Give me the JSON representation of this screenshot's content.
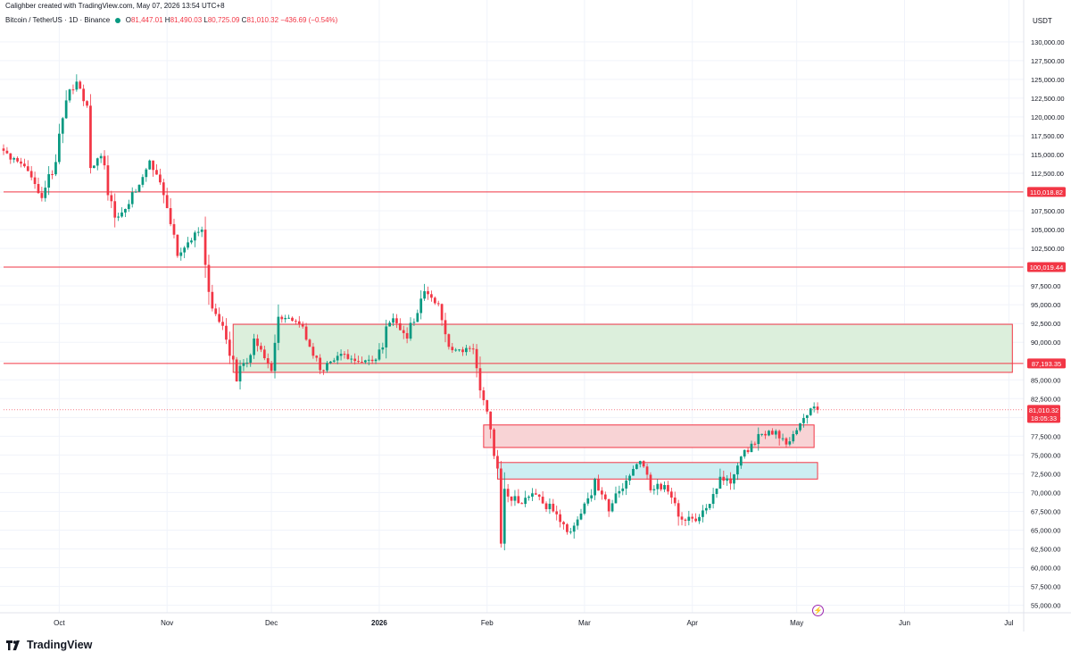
{
  "header": {
    "creator_line": "Calighber created with TradingView.com, May 07, 2026 13:54 UTC+8",
    "symbol": "Bitcoin / TetherUS · 1D · Binance",
    "open_label": "O",
    "open": "81,447.01",
    "high_label": "H",
    "high": "81,490.03",
    "low_label": "L",
    "low": "80,725.09",
    "close_label": "C",
    "close": "81,010.32",
    "change": "−436.69 (−0.54%)"
  },
  "price_axis": {
    "currency": "USDT",
    "labels": [
      "130,000.00",
      "127,500.00",
      "125,000.00",
      "122,500.00",
      "120,000.00",
      "117,500.00",
      "115,000.00",
      "112,500.00",
      "110,000.00",
      "107,500.00",
      "105,000.00",
      "102,500.00",
      "100,000.00",
      "97,500.00",
      "95,000.00",
      "92,500.00",
      "90,000.00",
      "87,500.00",
      "85,000.00",
      "82,500.00",
      "80,000.00",
      "77,500.00",
      "75,000.00",
      "72,500.00",
      "70,000.00",
      "67,500.00",
      "65,000.00",
      "62,500.00",
      "60,000.00",
      "57,500.00",
      "55,000.00"
    ]
  },
  "time_axis": {
    "labels": [
      {
        "text": "Oct",
        "date": "2025-10-01",
        "bold": false
      },
      {
        "text": "Nov",
        "date": "2025-11-01",
        "bold": false
      },
      {
        "text": "Dec",
        "date": "2025-12-01",
        "bold": false
      },
      {
        "text": "2026",
        "date": "2026-01-01",
        "bold": true
      },
      {
        "text": "Feb",
        "date": "2026-02-01",
        "bold": false
      },
      {
        "text": "Mar",
        "date": "2026-03-01",
        "bold": false
      },
      {
        "text": "Apr",
        "date": "2026-04-01",
        "bold": false
      },
      {
        "text": "May",
        "date": "2026-05-01",
        "bold": false
      },
      {
        "text": "Jun",
        "date": "2026-06-01",
        "bold": false
      },
      {
        "text": "Jul",
        "date": "2026-07-01",
        "bold": false
      }
    ]
  },
  "price_tags": [
    {
      "text": "110,018.82",
      "price": 110018.82
    },
    {
      "text": "100,019.44",
      "price": 100019.44
    },
    {
      "text": "87,193.35",
      "price": 87193.35
    }
  ],
  "last_price": {
    "text": "81,010.32",
    "countdown": "18:05:33",
    "price": 81010.32
  },
  "brand": "TradingView",
  "colors": {
    "up": "#089981",
    "down": "#f23645",
    "level_line": "#f23645",
    "green_zone_fill": "#dcefdc",
    "red_zone_fill": "#f8d3d5",
    "cyan_zone_fill": "#cdeef2",
    "zone_border": "#f23645",
    "grid": "#f0f3fa",
    "axis_text": "#131722"
  },
  "chart_data": {
    "type": "candlestick",
    "symbol": "Bitcoin / TetherUS",
    "interval": "1D",
    "exchange": "Binance",
    "y_range": [
      54000,
      132000
    ],
    "x_range": [
      "2025-09-15",
      "2026-07-05"
    ],
    "grid": true,
    "legend": "top-left",
    "horizontal_levels": [
      110018.82,
      100019.44,
      87193.35
    ],
    "zones": [
      {
        "name": "green-zone",
        "from_date": "2025-11-20",
        "to_date": "2026-07-02",
        "low": 86000,
        "high": 92400
      },
      {
        "name": "red-zone",
        "from_date": "2026-01-31",
        "to_date": "2026-05-06",
        "low": 76000,
        "high": 79000
      },
      {
        "name": "cyan-zone",
        "from_date": "2026-02-04",
        "to_date": "2026-05-07",
        "low": 71800,
        "high": 74000
      }
    ],
    "anchors": [
      {
        "date": "2025-09-15",
        "close": 115500
      },
      {
        "date": "2025-09-22",
        "close": 112800
      },
      {
        "date": "2025-09-26",
        "close": 109200
      },
      {
        "date": "2025-09-30",
        "close": 114000
      },
      {
        "date": "2025-10-03",
        "close": 122200
      },
      {
        "date": "2025-10-06",
        "close": 124700
      },
      {
        "date": "2025-10-09",
        "close": 121500
      },
      {
        "date": "2025-10-10",
        "close": 113200
      },
      {
        "date": "2025-10-13",
        "close": 114800
      },
      {
        "date": "2025-10-17",
        "close": 106600
      },
      {
        "date": "2025-10-21",
        "close": 108400
      },
      {
        "date": "2025-10-27",
        "close": 114200
      },
      {
        "date": "2025-10-31",
        "close": 109600
      },
      {
        "date": "2025-11-04",
        "close": 101500
      },
      {
        "date": "2025-11-07",
        "close": 103300
      },
      {
        "date": "2025-11-11",
        "close": 105000
      },
      {
        "date": "2025-11-14",
        "close": 94500
      },
      {
        "date": "2025-11-17",
        "close": 92200
      },
      {
        "date": "2025-11-21",
        "close": 84800
      },
      {
        "date": "2025-11-26",
        "close": 90500
      },
      {
        "date": "2025-12-01",
        "close": 86200
      },
      {
        "date": "2025-12-03",
        "close": 93400
      },
      {
        "date": "2025-12-10",
        "close": 92100
      },
      {
        "date": "2025-12-15",
        "close": 86300
      },
      {
        "date": "2025-12-20",
        "close": 88200
      },
      {
        "date": "2025-12-26",
        "close": 87400
      },
      {
        "date": "2025-12-31",
        "close": 87700
      },
      {
        "date": "2026-01-05",
        "close": 93200
      },
      {
        "date": "2026-01-09",
        "close": 90500
      },
      {
        "date": "2026-01-14",
        "close": 96800
      },
      {
        "date": "2026-01-18",
        "close": 95100
      },
      {
        "date": "2026-01-21",
        "close": 89400
      },
      {
        "date": "2026-01-25",
        "close": 88700
      },
      {
        "date": "2026-01-28",
        "close": 89100
      },
      {
        "date": "2026-01-30",
        "close": 83600
      },
      {
        "date": "2026-02-02",
        "close": 78400
      },
      {
        "date": "2026-02-04",
        "close": 73200
      },
      {
        "date": "2026-02-05",
        "close": 63200
      },
      {
        "date": "2026-02-06",
        "close": 70500
      },
      {
        "date": "2026-02-10",
        "close": 68600
      },
      {
        "date": "2026-02-14",
        "close": 69900
      },
      {
        "date": "2026-02-20",
        "close": 67500
      },
      {
        "date": "2026-02-25",
        "close": 64800
      },
      {
        "date": "2026-02-28",
        "close": 67200
      },
      {
        "date": "2026-03-04",
        "close": 71800
      },
      {
        "date": "2026-03-08",
        "close": 67500
      },
      {
        "date": "2026-03-13",
        "close": 71600
      },
      {
        "date": "2026-03-17",
        "close": 74200
      },
      {
        "date": "2026-03-20",
        "close": 70300
      },
      {
        "date": "2026-03-24",
        "close": 71000
      },
      {
        "date": "2026-03-28",
        "close": 66800
      },
      {
        "date": "2026-04-02",
        "close": 66200
      },
      {
        "date": "2026-04-06",
        "close": 68500
      },
      {
        "date": "2026-04-09",
        "close": 72100
      },
      {
        "date": "2026-04-12",
        "close": 71200
      },
      {
        "date": "2026-04-15",
        "close": 74800
      },
      {
        "date": "2026-04-18",
        "close": 76500
      },
      {
        "date": "2026-04-21",
        "close": 77800
      },
      {
        "date": "2026-04-25",
        "close": 78200
      },
      {
        "date": "2026-04-28",
        "close": 76400
      },
      {
        "date": "2026-05-01",
        "close": 78300
      },
      {
        "date": "2026-05-04",
        "close": 80300
      },
      {
        "date": "2026-05-05",
        "close": 81200
      },
      {
        "date": "2026-05-06",
        "close": 81450
      },
      {
        "date": "2026-05-07",
        "close": 81010
      }
    ]
  }
}
